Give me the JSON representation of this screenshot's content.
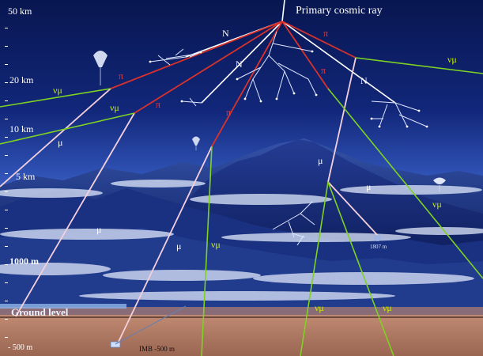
{
  "title": "Primary cosmic ray",
  "altitude_labels": [
    "50 km",
    "20 km",
    "10 km",
    "5 km",
    "1000 m",
    "Ground level",
    "- 500 m"
  ],
  "particle_labels": {
    "nucleon": "N",
    "pion": "π",
    "muon": "μ",
    "muon_neutrino": "νμ"
  },
  "detectors": {
    "imb": "IMB -500 m",
    "mountain_station": "1807 m"
  },
  "colors": {
    "sky_top": "#0a1a5c",
    "sky_bottom": "#3a63c9",
    "nucleon_track": "#ffffff",
    "pion_track": "#d8322a",
    "muon_track": "#f2c8d8",
    "neutrino_track": "#7ed321",
    "ground": "#b07a64",
    "label_text": "#ffffff",
    "neutrino_label": "#c8f000"
  },
  "icons": [
    "balloon-icon",
    "detector-icon"
  ]
}
